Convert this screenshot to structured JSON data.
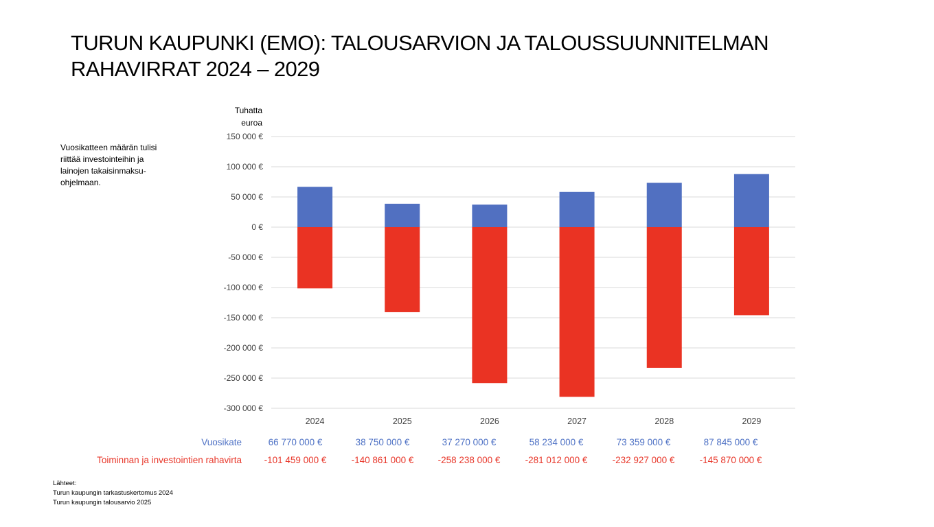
{
  "title": {
    "line1": "TURUN KAUPUNKI (EMO): TALOUSARVION JA TALOUSSUUNNITELMAN",
    "line2": "RAHAVIRRAT 2024 – 2029"
  },
  "note": {
    "line1": "Vuosikatteen määrän tulisi",
    "line2": "riittää investointeihin ja",
    "line3": "lainojen takaisinmaksu-",
    "line4": "ohjelmaan."
  },
  "unit": {
    "line1": "Tuhatta",
    "line2": "euroa"
  },
  "chart_data": {
    "type": "bar",
    "categories": [
      "2024",
      "2025",
      "2026",
      "2027",
      "2028",
      "2029"
    ],
    "ylim": [
      -300000,
      150000
    ],
    "ytick_values": [
      150000,
      100000,
      50000,
      0,
      -50000,
      -100000,
      -150000,
      -200000,
      -250000,
      -300000
    ],
    "ytick_labels": [
      "150 000 €",
      "100 000 €",
      "50 000 €",
      "0 €",
      "-50 000 €",
      "-100 000 €",
      "-150 000 €",
      "-200 000 €",
      "-250 000 €",
      "-300 000 €"
    ],
    "grid": true,
    "series": [
      {
        "name": "Vuosikate",
        "color": "#5170c1",
        "values": [
          66770,
          38750,
          37270,
          58234,
          73359,
          87845
        ]
      },
      {
        "name": "Toiminnan ja investointien rahavirta",
        "color": "#ea3323",
        "values": [
          -101459,
          -140861,
          -258238,
          -281012,
          -232927,
          -145870
        ]
      }
    ]
  },
  "table": {
    "rows": [
      {
        "label": "Vuosikate",
        "values": [
          "66 770 000 €",
          "38 750 000 €",
          "37 270 000 €",
          "58 234 000 €",
          "73 359 000 €",
          "87 845 000 €"
        ]
      },
      {
        "label": "Toiminnan ja investointien rahavirta",
        "values": [
          "-101 459 000 €",
          "-140 861 000 €",
          "-258 238 000 €",
          "-281 012 000 €",
          "-232 927 000 €",
          "-145 870 000 €"
        ]
      }
    ]
  },
  "sources": {
    "heading": "Lähteet:",
    "line1": "Turun kaupungin tarkastuskertomus 2024",
    "line2": "Turun kaupungin talousarvio 2025"
  }
}
